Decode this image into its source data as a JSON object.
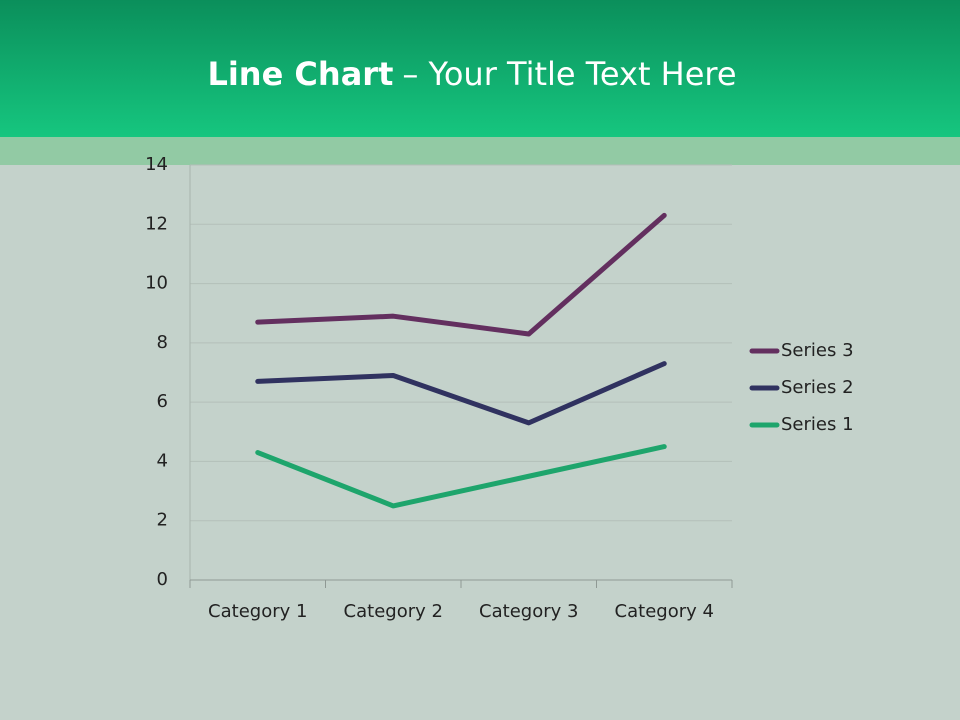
{
  "chart_data": {
    "type": "line",
    "title_bold": "Line Chart",
    "title": "– Your Title Text Here",
    "categories": [
      "Category 1",
      "Category 2",
      "Category 3",
      "Category 4"
    ],
    "series": [
      {
        "name": "Series 1",
        "color": "#1ea56c",
        "values": [
          4.3,
          2.5,
          3.5,
          4.5
        ]
      },
      {
        "name": "Series 2",
        "color": "#303260",
        "values": [
          6.7,
          6.9,
          5.3,
          7.3
        ]
      },
      {
        "name": "Series 3",
        "color": "#632f5f",
        "values": [
          8.7,
          8.9,
          8.3,
          12.3
        ]
      }
    ],
    "ylim": [
      0,
      14
    ],
    "yticks": [
      0,
      2,
      4,
      6,
      8,
      10,
      12,
      14
    ],
    "grid": true,
    "legend": "right"
  }
}
